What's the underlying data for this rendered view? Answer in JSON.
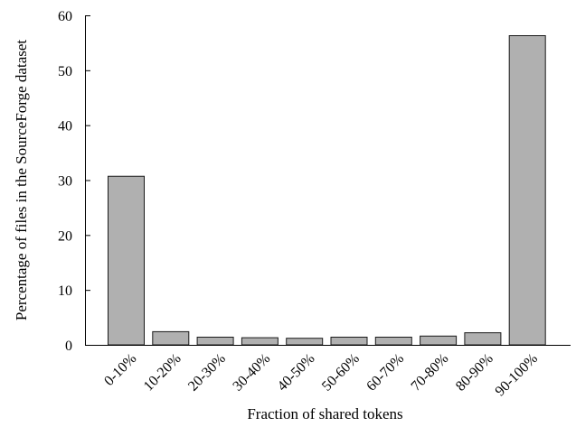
{
  "chart_data": {
    "type": "bar",
    "categories": [
      "0-10%",
      "10-20%",
      "20-30%",
      "30-40%",
      "40-50%",
      "50-60%",
      "60-70%",
      "70-80%",
      "80-90%",
      "90-100%"
    ],
    "values": [
      30.7,
      2.4,
      1.4,
      1.3,
      1.2,
      1.4,
      1.4,
      1.6,
      2.2,
      56.3
    ],
    "title": "",
    "xlabel": "Fraction of shared tokens",
    "ylabel": "Percentage of files in the SourceForge dataset",
    "ylim": [
      0,
      60
    ],
    "yticks": [
      0,
      10,
      20,
      30,
      40,
      50,
      60
    ],
    "bar_color": "#b0b0b0",
    "grid": false,
    "legend": "none"
  }
}
